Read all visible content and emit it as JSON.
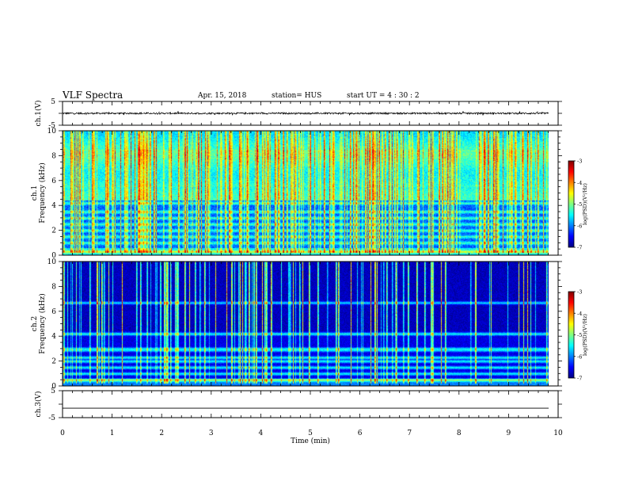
{
  "header": {
    "title": "VLF Spectra",
    "date": "Apr. 15, 2018",
    "station": "station= HUS",
    "start": "start  UT  =   4  : 30 : 2"
  },
  "chart_data": [
    {
      "type": "line",
      "panel": "waveform-ch1",
      "ylabel": "ch.1(V)",
      "ylim": [
        -5,
        5
      ],
      "yticks": [
        "5",
        "-5"
      ],
      "xlim": [
        0,
        10
      ],
      "series": [
        {
          "values_hint": "noise around 0 V, amplitude ~0.3 V, t = 0 to 9.8 min"
        }
      ]
    },
    {
      "type": "heatmap",
      "panel": "spectrogram-ch1",
      "ylabel": "ch.1  Frequency (kHz)",
      "ylim": [
        0,
        10
      ],
      "yticks": [
        "0",
        "2",
        "4",
        "6",
        "8",
        "10"
      ],
      "xlim": [
        0,
        10
      ],
      "colorbar": {
        "label": "log(PSD)(V²/Hz)",
        "range": [
          -7,
          -3
        ],
        "ticks": [
          "-3",
          "-4",
          "-5",
          "-6",
          "-7"
        ]
      },
      "bands_khz": [
        0.3,
        1.0,
        1.5,
        2.0,
        2.5,
        3.0,
        3.5,
        4.2
      ],
      "features": "broadband emission 4.5-10 kHz with vertical impulsive spikes; horizontal transmitter/harmonic lines below 4.5 kHz"
    },
    {
      "type": "heatmap",
      "panel": "spectrogram-ch2",
      "ylabel": "ch.2  Frequency (kHz)",
      "ylim": [
        0,
        10
      ],
      "yticks": [
        "0",
        "2",
        "4",
        "6",
        "8",
        "10"
      ],
      "xlim": [
        0,
        10
      ],
      "colorbar": {
        "label": "log(PSD)(V²/Hz)",
        "range": [
          -7,
          -3
        ],
        "ticks": [
          "-3",
          "-4",
          "-5",
          "-6",
          "-7"
        ]
      },
      "bands_khz": [
        0.5,
        1.0,
        1.5,
        2.0,
        2.3,
        2.9,
        3.0,
        4.2,
        6.7
      ],
      "features": "dark background with sparse vertical impulsive spikes; strong horizontal lines below 4.5 kHz"
    },
    {
      "type": "line",
      "panel": "waveform-ch3",
      "ylabel": "ch.3(V)",
      "ylim": [
        -5,
        5
      ],
      "yticks": [
        "5",
        "-5"
      ],
      "xlim": [
        0,
        10
      ],
      "series": [
        {
          "values_hint": "flat line at about -1.5 V"
        }
      ]
    }
  ],
  "xaxis": {
    "label": "Time  (min)",
    "ticks": [
      "0",
      "1",
      "2",
      "3",
      "4",
      "5",
      "6",
      "7",
      "8",
      "9",
      "10"
    ]
  },
  "colors": {
    "jet": [
      "#000080",
      "#0000ff",
      "#0080ff",
      "#00ffff",
      "#80ff80",
      "#ffff00",
      "#ff8000",
      "#ff0000",
      "#800000"
    ]
  }
}
